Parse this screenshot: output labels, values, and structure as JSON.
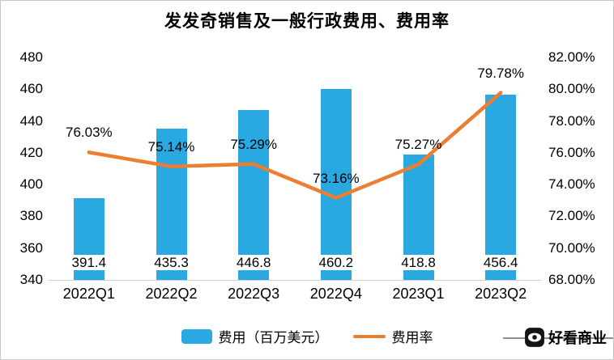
{
  "title": "发发奇销售及一般行政费用、费用率",
  "chart_data": {
    "type": "combo",
    "title": "发发奇销售及一般行政费用、费用率",
    "xlabel": "",
    "ylabel_left": "",
    "ylabel_right": "",
    "grid": false,
    "legend_position": "bottom",
    "categories": [
      "2022Q1",
      "2022Q2",
      "2022Q3",
      "2022Q4",
      "2023Q1",
      "2023Q2"
    ],
    "series": [
      {
        "name": "费用（百万美元）",
        "type": "bar",
        "axis": "left",
        "color": "#29A8E2",
        "values": [
          391.4,
          435.3,
          446.8,
          460.2,
          418.8,
          456.4
        ],
        "labels": [
          "391.4",
          "435.3",
          "446.8",
          "460.2",
          "418.8",
          "456.4"
        ]
      },
      {
        "name": "费用率",
        "type": "line",
        "axis": "right",
        "color": "#ED7D31",
        "values": [
          76.03,
          75.14,
          75.29,
          73.16,
          75.27,
          79.78
        ],
        "labels": [
          "76.03%",
          "75.14%",
          "75.29%",
          "73.16%",
          "75.27%",
          "79.78%"
        ]
      }
    ],
    "axis_left": {
      "min": 340,
      "max": 480,
      "step": 20,
      "ticks": [
        "340",
        "360",
        "380",
        "400",
        "420",
        "440",
        "460",
        "480"
      ]
    },
    "axis_right": {
      "min": 68,
      "max": 82,
      "step": 2,
      "ticks": [
        "68.00%",
        "70.00%",
        "72.00%",
        "74.00%",
        "76.00%",
        "78.00%",
        "80.00%",
        "82.00%"
      ]
    }
  },
  "legend": {
    "items": [
      {
        "label": "费用（百万美元）",
        "color": "#29A8E2",
        "type": "bar"
      },
      {
        "label": "费用率",
        "color": "#ED7D31",
        "type": "line"
      }
    ]
  },
  "watermark": {
    "label": "好看商业"
  }
}
